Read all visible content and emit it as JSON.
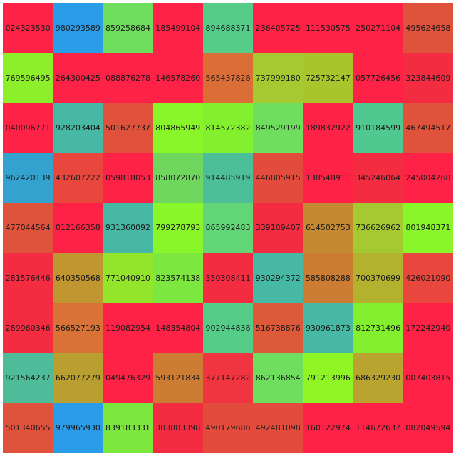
{
  "grid": {
    "rows": [
      [
        {
          "label": "024323530",
          "color": "#fe2346"
        },
        {
          "label": "980293589",
          "color": "#2b9ce8"
        },
        {
          "label": "859258684",
          "color": "#6fde5e"
        },
        {
          "label": "185499104",
          "color": "#fe2346"
        },
        {
          "label": "894688371",
          "color": "#55cc88"
        },
        {
          "label": "236405725",
          "color": "#fe2346"
        },
        {
          "label": "111530575",
          "color": "#fe2346"
        },
        {
          "label": "250271104",
          "color": "#fe2346"
        },
        {
          "label": "495624658",
          "color": "#df523c"
        }
      ],
      [
        {
          "label": "769596495",
          "color": "#8def2a"
        },
        {
          "label": "264300425",
          "color": "#fe2346"
        },
        {
          "label": "088876278",
          "color": "#fe2346"
        },
        {
          "label": "146578260",
          "color": "#fe2346"
        },
        {
          "label": "565437828",
          "color": "#da6e36"
        },
        {
          "label": "737999180",
          "color": "#a5c930"
        },
        {
          "label": "725732147",
          "color": "#a9c52e"
        },
        {
          "label": "057726456",
          "color": "#fe2346"
        },
        {
          "label": "323844609",
          "color": "#f42c42"
        }
      ],
      [
        {
          "label": "040096771",
          "color": "#fe2346"
        },
        {
          "label": "928203404",
          "color": "#46b8a3"
        },
        {
          "label": "501627737",
          "color": "#e0513c"
        },
        {
          "label": "804865949",
          "color": "#88f628"
        },
        {
          "label": "814572382",
          "color": "#82f02e"
        },
        {
          "label": "849529199",
          "color": "#6fde5e"
        },
        {
          "label": "189832922",
          "color": "#fe2346"
        },
        {
          "label": "910184599",
          "color": "#50c990"
        },
        {
          "label": "467494517",
          "color": "#df523c"
        }
      ],
      [
        {
          "label": "962420139",
          "color": "#34a2cf"
        },
        {
          "label": "432607222",
          "color": "#e9473e"
        },
        {
          "label": "059818053",
          "color": "#fe2346"
        },
        {
          "label": "858072870",
          "color": "#6fd65e"
        },
        {
          "label": "914485919",
          "color": "#4cbf98"
        },
        {
          "label": "446805915",
          "color": "#e34c3c"
        },
        {
          "label": "138548911",
          "color": "#fe2346"
        },
        {
          "label": "345246064",
          "color": "#f42c42"
        },
        {
          "label": "245004268",
          "color": "#fe2346"
        }
      ],
      [
        {
          "label": "477044564",
          "color": "#df523c"
        },
        {
          "label": "012166358",
          "color": "#fe2346"
        },
        {
          "label": "931360092",
          "color": "#46b8a3"
        },
        {
          "label": "799278793",
          "color": "#88f628"
        },
        {
          "label": "865992483",
          "color": "#62d676"
        },
        {
          "label": "339109407",
          "color": "#f42c42"
        },
        {
          "label": "614502753",
          "color": "#c58a31"
        },
        {
          "label": "736626962",
          "color": "#a5c930"
        },
        {
          "label": "801948371",
          "color": "#88f628"
        }
      ],
      [
        {
          "label": "281576446",
          "color": "#f42c42"
        },
        {
          "label": "640350568",
          "color": "#c09630"
        },
        {
          "label": "771040910",
          "color": "#92e52a"
        },
        {
          "label": "823574138",
          "color": "#7ce83f"
        },
        {
          "label": "350308411",
          "color": "#f42c42"
        },
        {
          "label": "930294372",
          "color": "#46b8a3"
        },
        {
          "label": "585808288",
          "color": "#cd7c34"
        },
        {
          "label": "700370699",
          "color": "#b2b22f"
        },
        {
          "label": "426021090",
          "color": "#e9473e"
        }
      ],
      [
        {
          "label": "289960346",
          "color": "#f42c42"
        },
        {
          "label": "566527193",
          "color": "#d87236"
        },
        {
          "label": "119082954",
          "color": "#fe2346"
        },
        {
          "label": "148354804",
          "color": "#fe2346"
        },
        {
          "label": "902944838",
          "color": "#55cc88"
        },
        {
          "label": "516738876",
          "color": "#de583a"
        },
        {
          "label": "930961873",
          "color": "#46b8a3"
        },
        {
          "label": "812731496",
          "color": "#82f02e"
        },
        {
          "label": "172242940",
          "color": "#fe2346"
        }
      ],
      [
        {
          "label": "921564237",
          "color": "#4ebc98"
        },
        {
          "label": "662077279",
          "color": "#b99f2f"
        },
        {
          "label": "049476329",
          "color": "#fe2346"
        },
        {
          "label": "593121834",
          "color": "#cd7c34"
        },
        {
          "label": "377147282",
          "color": "#f03440"
        },
        {
          "label": "862136854",
          "color": "#6fde5e"
        },
        {
          "label": "791213996",
          "color": "#8ff525"
        },
        {
          "label": "686329230",
          "color": "#b9a42f"
        },
        {
          "label": "007403815",
          "color": "#fe2346"
        }
      ],
      [
        {
          "label": "501340655",
          "color": "#df523c"
        },
        {
          "label": "979965930",
          "color": "#2b9ce8"
        },
        {
          "label": "839183331",
          "color": "#7ce83f"
        },
        {
          "label": "303883398",
          "color": "#f42c42"
        },
        {
          "label": "490179686",
          "color": "#e34c3c"
        },
        {
          "label": "492481098",
          "color": "#e34c3c"
        },
        {
          "label": "160122974",
          "color": "#fe2346"
        },
        {
          "label": "114672637",
          "color": "#fe2346"
        },
        {
          "label": "082049594",
          "color": "#fe2346"
        }
      ]
    ]
  }
}
